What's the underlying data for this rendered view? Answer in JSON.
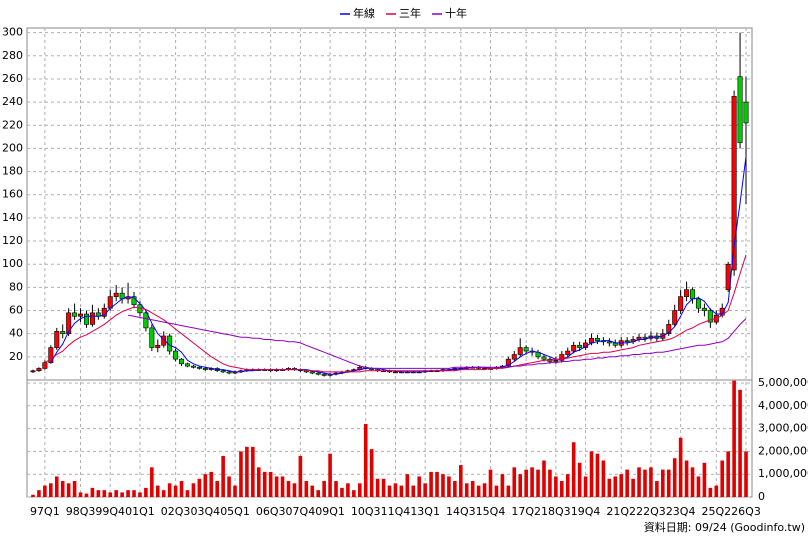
{
  "chart_data": {
    "type": "candlestick",
    "legend": "top",
    "grid": true,
    "footer": "資料日期: 09/24 (Goodinfo.tw)",
    "categories": [
      null,
      null,
      "97Q1",
      null,
      null,
      null,
      null,
      null,
      "98Q3",
      null,
      null,
      null,
      null,
      "99Q4",
      null,
      null,
      null,
      null,
      "01Q1",
      null,
      null,
      null,
      null,
      null,
      "02Q3",
      null,
      null,
      null,
      null,
      "03Q4",
      null,
      null,
      null,
      null,
      "05Q1",
      null,
      null,
      null,
      null,
      null,
      "06Q3",
      null,
      null,
      null,
      null,
      "07Q4",
      null,
      null,
      null,
      null,
      "09Q1",
      null,
      null,
      null,
      null,
      null,
      "10Q3",
      null,
      null,
      null,
      null,
      "11Q4",
      null,
      null,
      null,
      null,
      "13Q1",
      null,
      null,
      null,
      null,
      null,
      "14Q3",
      null,
      null,
      null,
      null,
      "15Q4",
      null,
      null,
      null,
      null,
      null,
      "17Q2",
      null,
      null,
      null,
      null,
      "18Q3",
      null,
      null,
      null,
      null,
      "19Q4",
      null,
      null,
      null,
      null,
      null,
      "21Q2",
      null,
      null,
      null,
      null,
      "22Q3",
      null,
      null,
      null,
      null,
      "23Q4",
      null,
      null,
      null,
      null,
      null,
      "25Q2",
      null,
      null,
      null,
      null,
      "26Q3"
    ],
    "ylim": [
      0,
      304
    ],
    "yticks": [
      20,
      40,
      60,
      80,
      100,
      120,
      140,
      160,
      180,
      200,
      220,
      240,
      260,
      280,
      300
    ],
    "candles": {
      "up_color": "#ff0000",
      "down_color": "#00cc00",
      "open": [
        7,
        8,
        10,
        15,
        28,
        42,
        40,
        58,
        55,
        57,
        48,
        58,
        55,
        62,
        72,
        75,
        70,
        72,
        65,
        58,
        45,
        28,
        30,
        38,
        25,
        18,
        14,
        12,
        11,
        10,
        9,
        10,
        8,
        7,
        6,
        7,
        8,
        9,
        9,
        9,
        9,
        8,
        9,
        9,
        10,
        9,
        8,
        7,
        6,
        5,
        4,
        5,
        6,
        7,
        8,
        9,
        11,
        10,
        9,
        8,
        8,
        7,
        7,
        7,
        7,
        7,
        7,
        8,
        8,
        8,
        9,
        9,
        10,
        10,
        11,
        11,
        10,
        10,
        10,
        11,
        12,
        18,
        22,
        28,
        25,
        24,
        20,
        18,
        16,
        17,
        22,
        25,
        30,
        28,
        32,
        36,
        34,
        33,
        32,
        30,
        34,
        33,
        35,
        37,
        36,
        38,
        36,
        40,
        48,
        60,
        72,
        78,
        70,
        62,
        60,
        50,
        56,
        78,
        95,
        262,
        240
      ],
      "high": [
        9,
        11,
        17,
        30,
        45,
        48,
        62,
        66,
        62,
        60,
        65,
        62,
        66,
        78,
        82,
        80,
        84,
        76,
        68,
        60,
        48,
        35,
        42,
        40,
        27,
        19,
        15,
        13,
        12,
        11,
        11,
        11,
        9,
        8,
        8,
        9,
        10,
        10,
        10,
        10,
        10,
        10,
        10,
        11,
        11,
        10,
        9,
        8,
        7,
        6,
        6,
        7,
        8,
        9,
        10,
        13,
        12,
        11,
        10,
        9,
        9,
        8,
        8,
        8,
        8,
        8,
        9,
        9,
        9,
        10,
        10,
        11,
        11,
        12,
        12,
        12,
        11,
        11,
        12,
        13,
        20,
        25,
        36,
        30,
        28,
        26,
        22,
        20,
        20,
        25,
        28,
        33,
        33,
        35,
        40,
        39,
        37,
        36,
        35,
        37,
        37,
        38,
        40,
        40,
        42,
        41,
        44,
        52,
        65,
        78,
        85,
        80,
        72,
        66,
        62,
        60,
        66,
        102,
        250,
        300,
        262
      ],
      "low": [
        6,
        7,
        9,
        14,
        26,
        36,
        38,
        52,
        50,
        45,
        46,
        52,
        53,
        60,
        68,
        66,
        66,
        62,
        55,
        42,
        25,
        24,
        28,
        22,
        16,
        12,
        11,
        10,
        9,
        8,
        8,
        7,
        6,
        5,
        5,
        6,
        7,
        8,
        8,
        8,
        7,
        7,
        8,
        8,
        8,
        7,
        6,
        5,
        4,
        3,
        3,
        4,
        5,
        6,
        7,
        8,
        9,
        8,
        7,
        7,
        6,
        6,
        6,
        6,
        6,
        6,
        6,
        7,
        7,
        7,
        8,
        8,
        9,
        9,
        10,
        9,
        9,
        9,
        9,
        10,
        11,
        16,
        20,
        22,
        21,
        18,
        16,
        14,
        14,
        15,
        20,
        23,
        25,
        26,
        30,
        31,
        30,
        29,
        28,
        28,
        30,
        31,
        33,
        33,
        34,
        33,
        34,
        38,
        46,
        57,
        68,
        66,
        58,
        55,
        45,
        48,
        54,
        76,
        90,
        200,
        152
      ],
      "close": [
        8,
        10,
        15,
        28,
        42,
        40,
        58,
        55,
        57,
        48,
        58,
        55,
        62,
        72,
        75,
        70,
        72,
        65,
        58,
        45,
        28,
        30,
        38,
        25,
        18,
        14,
        12,
        11,
        10,
        9,
        10,
        8,
        7,
        6,
        7,
        8,
        9,
        9,
        9,
        9,
        8,
        9,
        9,
        10,
        9,
        8,
        7,
        6,
        5,
        4,
        5,
        6,
        7,
        8,
        9,
        11,
        10,
        9,
        8,
        8,
        7,
        7,
        7,
        7,
        7,
        7,
        8,
        8,
        8,
        9,
        9,
        10,
        10,
        11,
        11,
        10,
        10,
        10,
        11,
        12,
        18,
        22,
        28,
        25,
        24,
        20,
        18,
        16,
        17,
        22,
        25,
        30,
        28,
        32,
        36,
        34,
        33,
        32,
        30,
        34,
        33,
        35,
        37,
        36,
        38,
        36,
        40,
        48,
        60,
        72,
        78,
        70,
        62,
        60,
        50,
        56,
        62,
        100,
        245,
        205,
        222
      ]
    },
    "series": [
      {
        "name": "年線",
        "color": "#0000ff",
        "values": [
          null,
          null,
          null,
          15,
          24,
          31,
          42,
          49,
          53,
          55,
          55,
          55,
          56,
          62,
          66,
          70,
          72,
          71,
          66,
          60,
          49,
          40,
          35,
          30,
          28,
          24,
          17,
          14,
          12,
          11,
          10,
          9,
          9,
          8,
          7,
          7,
          8,
          8,
          9,
          9,
          9,
          9,
          9,
          9,
          9,
          9,
          9,
          8,
          7,
          6,
          5,
          5,
          6,
          7,
          8,
          9,
          10,
          10,
          10,
          9,
          8,
          8,
          7,
          7,
          7,
          7,
          7,
          8,
          8,
          8,
          9,
          9,
          10,
          10,
          11,
          11,
          11,
          10,
          10,
          11,
          13,
          16,
          20,
          23,
          25,
          24,
          22,
          20,
          18,
          18,
          20,
          24,
          26,
          29,
          32,
          33,
          34,
          34,
          32,
          32,
          32,
          33,
          35,
          35,
          37,
          37,
          38,
          41,
          46,
          55,
          65,
          70,
          71,
          68,
          61,
          57,
          57,
          67,
          116,
          153,
          193
        ]
      },
      {
        "name": "三年",
        "color": "#e0004a",
        "values": [
          null,
          null,
          15,
          18,
          22,
          25,
          30,
          34,
          37,
          39,
          42,
          45,
          48,
          52,
          56,
          59,
          61,
          63,
          62,
          61,
          58,
          55,
          52,
          48,
          44,
          40,
          36,
          32,
          28,
          24,
          20,
          17,
          14,
          12,
          11,
          10,
          9,
          9,
          9,
          9,
          9,
          9,
          9,
          9,
          9,
          9,
          8,
          8,
          8,
          7,
          7,
          7,
          7,
          7,
          7,
          7,
          8,
          8,
          8,
          8,
          8,
          8,
          8,
          8,
          8,
          8,
          8,
          8,
          8,
          8,
          8,
          8,
          9,
          9,
          9,
          9,
          9,
          10,
          10,
          10,
          11,
          12,
          13,
          14,
          15,
          16,
          17,
          17,
          18,
          18,
          19,
          20,
          21,
          22,
          23,
          23,
          24,
          24,
          25,
          26,
          27,
          28,
          30,
          31,
          32,
          33,
          34,
          35,
          37,
          40,
          43,
          45,
          48,
          50,
          52,
          53,
          56,
          60,
          75,
          92,
          108
        ]
      },
      {
        "name": "十年",
        "color": "#9000c0",
        "values": [
          null,
          null,
          null,
          null,
          null,
          null,
          null,
          null,
          null,
          null,
          null,
          null,
          null,
          null,
          null,
          null,
          56,
          55,
          54,
          53,
          52,
          51,
          50,
          49,
          48,
          47,
          46,
          45,
          44,
          43,
          42,
          41,
          40,
          39,
          38,
          37,
          37,
          36,
          36,
          35,
          35,
          34,
          34,
          33,
          33,
          32,
          30,
          28,
          26,
          24,
          22,
          20,
          18,
          16,
          14,
          12,
          11,
          10,
          10,
          10,
          10,
          10,
          10,
          10,
          10,
          10,
          10,
          10,
          10,
          10,
          10,
          11,
          11,
          11,
          11,
          11,
          11,
          11,
          11,
          11,
          11,
          12,
          12,
          13,
          13,
          14,
          14,
          15,
          15,
          16,
          16,
          17,
          17,
          18,
          18,
          19,
          19,
          20,
          20,
          21,
          21,
          22,
          22,
          23,
          23,
          24,
          24,
          25,
          26,
          27,
          28,
          29,
          30,
          30,
          31,
          32,
          33,
          36,
          42,
          48,
          53
        ]
      }
    ],
    "volume": {
      "color": "#e00000",
      "ylim": [
        0,
        5130000
      ],
      "yticks": [
        0,
        {
          "value": 1000000,
          "label": "1,000,000"
        },
        {
          "value": 2000000,
          "label": "2,000,000"
        },
        {
          "value": 3000000,
          "label": "3,000,000"
        },
        {
          "value": 4000000,
          "label": "4,000,000"
        },
        {
          "value": 5000000,
          "label": "5,000,000"
        }
      ],
      "values": [
        100000,
        300000,
        500000,
        600000,
        900000,
        700000,
        600000,
        700000,
        200000,
        150000,
        400000,
        300000,
        300000,
        200000,
        300000,
        200000,
        300000,
        300000,
        200000,
        400000,
        1300000,
        500000,
        300000,
        600000,
        500000,
        700000,
        300000,
        600000,
        800000,
        1000000,
        1100000,
        700000,
        1800000,
        900000,
        500000,
        2000000,
        2200000,
        2200000,
        1300000,
        1100000,
        1100000,
        900000,
        900000,
        700000,
        600000,
        1800000,
        700000,
        500000,
        300000,
        700000,
        1900000,
        700000,
        400000,
        600000,
        300000,
        600000,
        3200000,
        2100000,
        800000,
        800000,
        500000,
        600000,
        500000,
        1000000,
        500000,
        900000,
        600000,
        1100000,
        1100000,
        1000000,
        900000,
        700000,
        1400000,
        600000,
        700000,
        500000,
        600000,
        1200000,
        500000,
        1000000,
        500000,
        1300000,
        1000000,
        1200000,
        1300000,
        1200000,
        1600000,
        1200000,
        900000,
        700000,
        1000000,
        2400000,
        1500000,
        900000,
        2000000,
        1900000,
        1600000,
        800000,
        900000,
        1000000,
        1200000,
        800000,
        1300000,
        1200000,
        1300000,
        700000,
        1200000,
        1200000,
        1700000,
        2600000,
        1600000,
        1300000,
        900000,
        1500000,
        400000,
        500000,
        1600000,
        2000000,
        5100000,
        4700000,
        2000000
      ]
    }
  }
}
